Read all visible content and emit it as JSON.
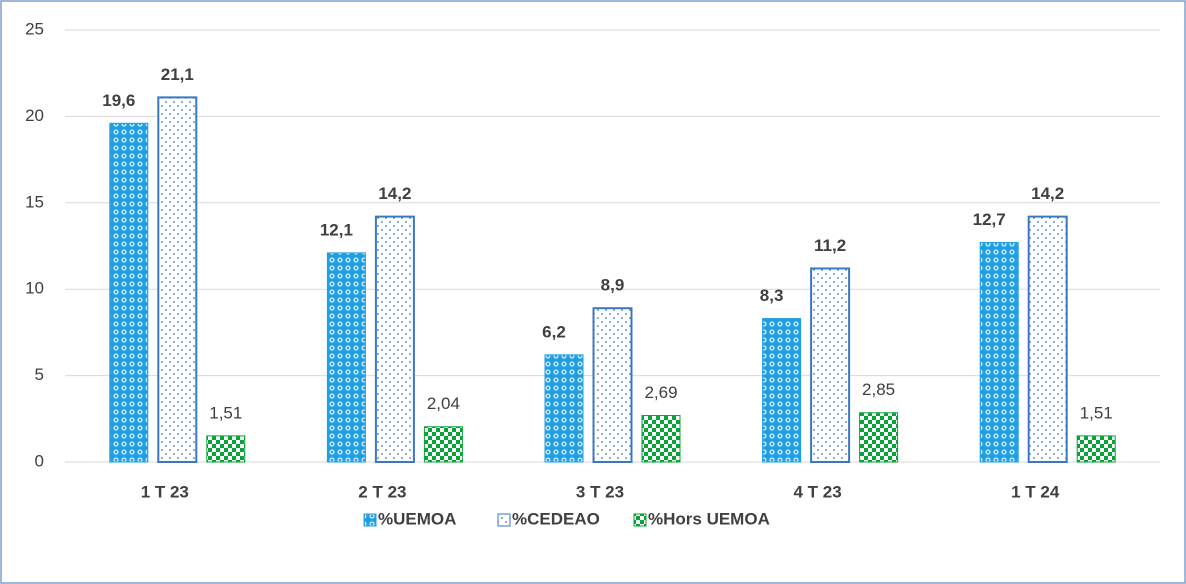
{
  "chart_data": {
    "type": "bar",
    "categories": [
      "1 T 23",
      "2 T 23",
      "3 T 23",
      "4 T 23",
      "1 T 24"
    ],
    "series": [
      {
        "name": "%UEMOA",
        "color": "#1f9fe0",
        "values": [
          19.6,
          12.1,
          6.2,
          8.3,
          12.7
        ],
        "value_labels": [
          "19,6",
          "12,1",
          "6,2",
          "8,3",
          "12,7"
        ]
      },
      {
        "name": "%CEDEAO",
        "color": "#3b78c2",
        "values": [
          21.1,
          14.2,
          8.9,
          11.2,
          14.2
        ],
        "value_labels": [
          "21,1",
          "14,2",
          "8,9",
          "11,2",
          "14,2"
        ]
      },
      {
        "name": "%Hors UEMOA",
        "color": "#0aa33a",
        "values": [
          1.51,
          2.04,
          2.69,
          2.85,
          1.51
        ],
        "value_labels": [
          "1,51",
          "2,04",
          "2,69",
          "2,85",
          "1,51"
        ]
      }
    ],
    "ylim": [
      0,
      25
    ],
    "yticks": [
      0,
      5,
      10,
      15,
      20,
      25
    ],
    "grid": true,
    "legend": "bottom"
  }
}
